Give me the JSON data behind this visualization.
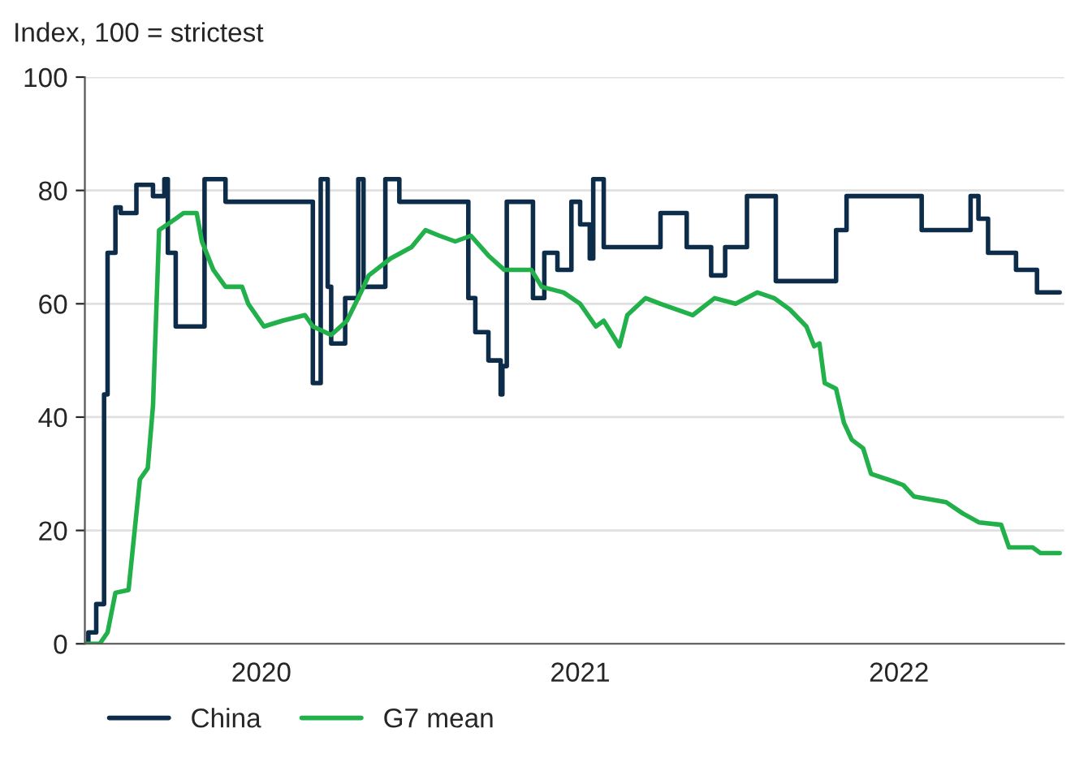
{
  "chart_data": {
    "type": "line",
    "ylabel": "Index, 100 = strictest",
    "xlim": [
      "2019-12-12",
      "2023-01-06"
    ],
    "ylim": [
      0,
      100
    ],
    "yticks": [
      0,
      20,
      40,
      60,
      80,
      100
    ],
    "xticks": [
      {
        "value": "2020-07-01",
        "label": "2020"
      },
      {
        "value": "2021-07-01",
        "label": "2021"
      },
      {
        "value": "2022-07-01",
        "label": "2022"
      }
    ],
    "grid": "y",
    "legend": "bottom left",
    "series": [
      {
        "name": "China",
        "type": "step",
        "color": "#0d2c4a",
        "x": [
          "2019-12-14",
          "2019-12-16",
          "2019-12-25",
          "2020-01-03",
          "2020-01-07",
          "2020-01-16",
          "2020-01-22",
          "2020-02-09",
          "2020-02-28",
          "2020-03-12",
          "2020-03-16",
          "2020-03-25",
          "2020-04-27",
          "2020-05-21",
          "2020-08-29",
          "2020-09-07",
          "2020-09-15",
          "2020-09-19",
          "2020-10-05",
          "2020-10-20",
          "2020-10-26",
          "2020-11-20",
          "2020-12-06",
          "2021-02-23",
          "2021-03-03",
          "2021-03-18",
          "2021-04-01",
          "2021-04-03",
          "2021-04-08",
          "2021-05-08",
          "2021-05-21",
          "2021-06-05",
          "2021-06-21",
          "2021-07-01",
          "2021-07-12",
          "2021-07-16",
          "2021-07-28",
          "2021-10-01",
          "2021-10-31",
          "2021-11-28",
          "2021-12-14",
          "2022-01-08",
          "2022-02-10",
          "2022-04-20",
          "2022-05-02",
          "2022-07-27",
          "2022-09-21",
          "2022-09-30",
          "2022-10-11",
          "2022-11-12",
          "2022-12-06",
          "2023-01-01"
        ],
        "values": [
          0,
          2,
          7,
          44,
          69,
          77,
          76,
          81,
          79,
          82,
          69,
          56,
          82,
          78,
          46,
          82,
          63,
          53,
          61,
          82,
          63,
          82,
          78,
          61,
          55,
          50,
          44,
          49,
          78,
          61,
          69,
          66,
          78,
          74,
          68,
          82,
          70,
          76,
          70,
          65,
          70,
          79,
          64,
          73,
          79,
          73,
          79,
          75,
          69,
          66,
          62,
          62
        ]
      },
      {
        "name": "G7 mean",
        "color": "#22b04b",
        "x": [
          "2019-12-14",
          "2019-12-29",
          "2020-01-07",
          "2020-01-16",
          "2020-01-31",
          "2020-02-07",
          "2020-02-13",
          "2020-02-22",
          "2020-02-28",
          "2020-03-06",
          "2020-03-25",
          "2020-04-03",
          "2020-04-18",
          "2020-04-24",
          "2020-05-07",
          "2020-05-21",
          "2020-06-09",
          "2020-06-16",
          "2020-07-04",
          "2020-07-25",
          "2020-08-20",
          "2020-08-29",
          "2020-09-19",
          "2020-10-07",
          "2020-10-23",
          "2020-11-01",
          "2020-11-26",
          "2020-12-20",
          "2021-01-05",
          "2021-01-21",
          "2021-02-08",
          "2021-02-26",
          "2021-03-18",
          "2021-04-05",
          "2021-05-06",
          "2021-05-18",
          "2021-06-12",
          "2021-07-01",
          "2021-07-19",
          "2021-07-28",
          "2021-08-15",
          "2021-08-24",
          "2021-09-14",
          "2021-10-01",
          "2021-11-07",
          "2021-12-02",
          "2021-12-26",
          "2022-01-20",
          "2022-02-08",
          "2022-02-26",
          "2022-03-17",
          "2022-03-26",
          "2022-04-01",
          "2022-04-07",
          "2022-04-20",
          "2022-04-29",
          "2022-05-08",
          "2022-05-21",
          "2022-05-30",
          "2022-06-24",
          "2022-07-06",
          "2022-07-18",
          "2022-08-24",
          "2022-09-12",
          "2022-10-01",
          "2022-10-26",
          "2022-11-04",
          "2022-12-01",
          "2022-12-10",
          "2023-01-01"
        ],
        "values": [
          0,
          0,
          2,
          9,
          9.5,
          20,
          29,
          31,
          42,
          73,
          75,
          76,
          76,
          71,
          66,
          63,
          63,
          60,
          56,
          57,
          58,
          56,
          54.5,
          57,
          62,
          65,
          68,
          70,
          73,
          72,
          71,
          72,
          68.5,
          66,
          66,
          63,
          62,
          60,
          56,
          57,
          52.5,
          58,
          61,
          60,
          58,
          61,
          60,
          62,
          61,
          59,
          56,
          52.5,
          53,
          46,
          45,
          39,
          36,
          34.5,
          30,
          28.7,
          28,
          26,
          25,
          23,
          21.4,
          21,
          17,
          17,
          16,
          16
        ]
      }
    ]
  }
}
